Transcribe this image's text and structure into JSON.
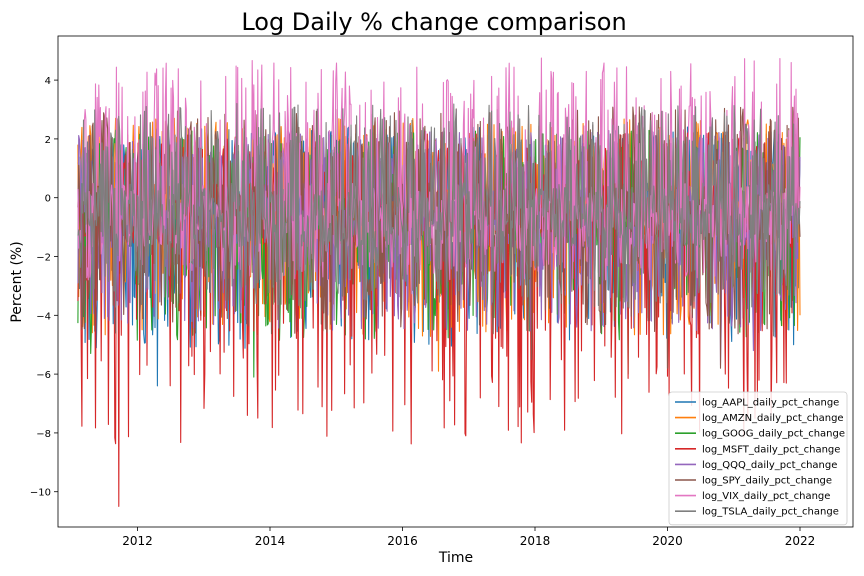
{
  "chart_data": {
    "type": "line",
    "title": "Log Daily % change comparison",
    "xlabel": "Time",
    "ylabel": "Percent (%)",
    "xlim": [
      2010.8,
      2022.8
    ],
    "ylim": [
      -11.2,
      5.5
    ],
    "x_ticks": [
      {
        "value": 2012,
        "label": "2012"
      },
      {
        "value": 2014,
        "label": "2014"
      },
      {
        "value": 2016,
        "label": "2016"
      },
      {
        "value": 2018,
        "label": "2018"
      },
      {
        "value": 2020,
        "label": "2020"
      },
      {
        "value": 2022,
        "label": "2022"
      }
    ],
    "y_ticks": [
      {
        "value": 4,
        "label": "4"
      },
      {
        "value": 2,
        "label": "2"
      },
      {
        "value": 0,
        "label": "0"
      },
      {
        "value": -2,
        "label": "−2"
      },
      {
        "value": -4,
        "label": "−4"
      },
      {
        "value": -6,
        "label": "−6"
      },
      {
        "value": -8,
        "label": "−8"
      },
      {
        "value": -10,
        "label": "−10"
      }
    ],
    "grid": false,
    "legend_position": "bottom-right",
    "x_range": [
      2011.1,
      2022.0
    ],
    "series": [
      {
        "name": "log_AAPL_daily_pct_change",
        "color": "#1f77b4",
        "min": -6.4,
        "max": 2.4,
        "extremes": [
          [
            2012.3,
            -6.4
          ],
          [
            2020.3,
            2.4
          ],
          [
            2021.9,
            -5.0
          ]
        ]
      },
      {
        "name": "log_AMZN_daily_pct_change",
        "color": "#ff7f0e",
        "min": -5.9,
        "max": 2.7,
        "extremes": [
          [
            2012.55,
            2.7
          ],
          [
            2016.55,
            -5.9
          ],
          [
            2022.0,
            -4.0
          ]
        ]
      },
      {
        "name": "log_GOOG_daily_pct_change",
        "color": "#2ca02c",
        "min": -6.1,
        "max": 2.3,
        "extremes": [
          [
            2011.3,
            -5.3
          ],
          [
            2013.75,
            -6.1
          ],
          [
            2019.4,
            -6.0
          ]
        ]
      },
      {
        "name": "log_MSFT_daily_pct_change",
        "color": "#d62728",
        "min": -10.5,
        "max": 2.2,
        "extremes": [
          [
            2011.72,
            -10.5
          ],
          [
            2021.2,
            -5.6
          ],
          [
            2020.3,
            2.2
          ]
        ]
      },
      {
        "name": "log_QQQ_daily_pct_change",
        "color": "#9467bd",
        "min": -5.7,
        "max": 2.3,
        "extremes": [
          [
            2020.8,
            -5.7
          ],
          [
            2011.15,
            -3.3
          ],
          [
            2021.3,
            -5.2
          ]
        ]
      },
      {
        "name": "log_SPY_daily_pct_change",
        "color": "#8c564b",
        "min": -5.8,
        "max": 3.1,
        "extremes": [
          [
            2020.0,
            -5.8
          ],
          [
            2017.95,
            -5.5
          ],
          [
            2020.8,
            -5.8
          ]
        ]
      },
      {
        "name": "log_VIX_daily_pct_change",
        "color": "#e377c2",
        "min": -3.5,
        "max": 4.75,
        "extremes": [
          [
            2011.72,
            3.9
          ],
          [
            2015.2,
            3.8
          ],
          [
            2018.1,
            4.75
          ],
          [
            2020.2,
            3.8
          ]
        ]
      },
      {
        "name": "log_TSLA_daily_pct_change",
        "color": "#7f7f7f",
        "min": -4.7,
        "max": 3.2,
        "extremes": [
          [
            2013.5,
            3.2
          ],
          [
            2021.6,
            -4.7
          ],
          [
            2020.4,
            2.8
          ]
        ]
      }
    ]
  }
}
